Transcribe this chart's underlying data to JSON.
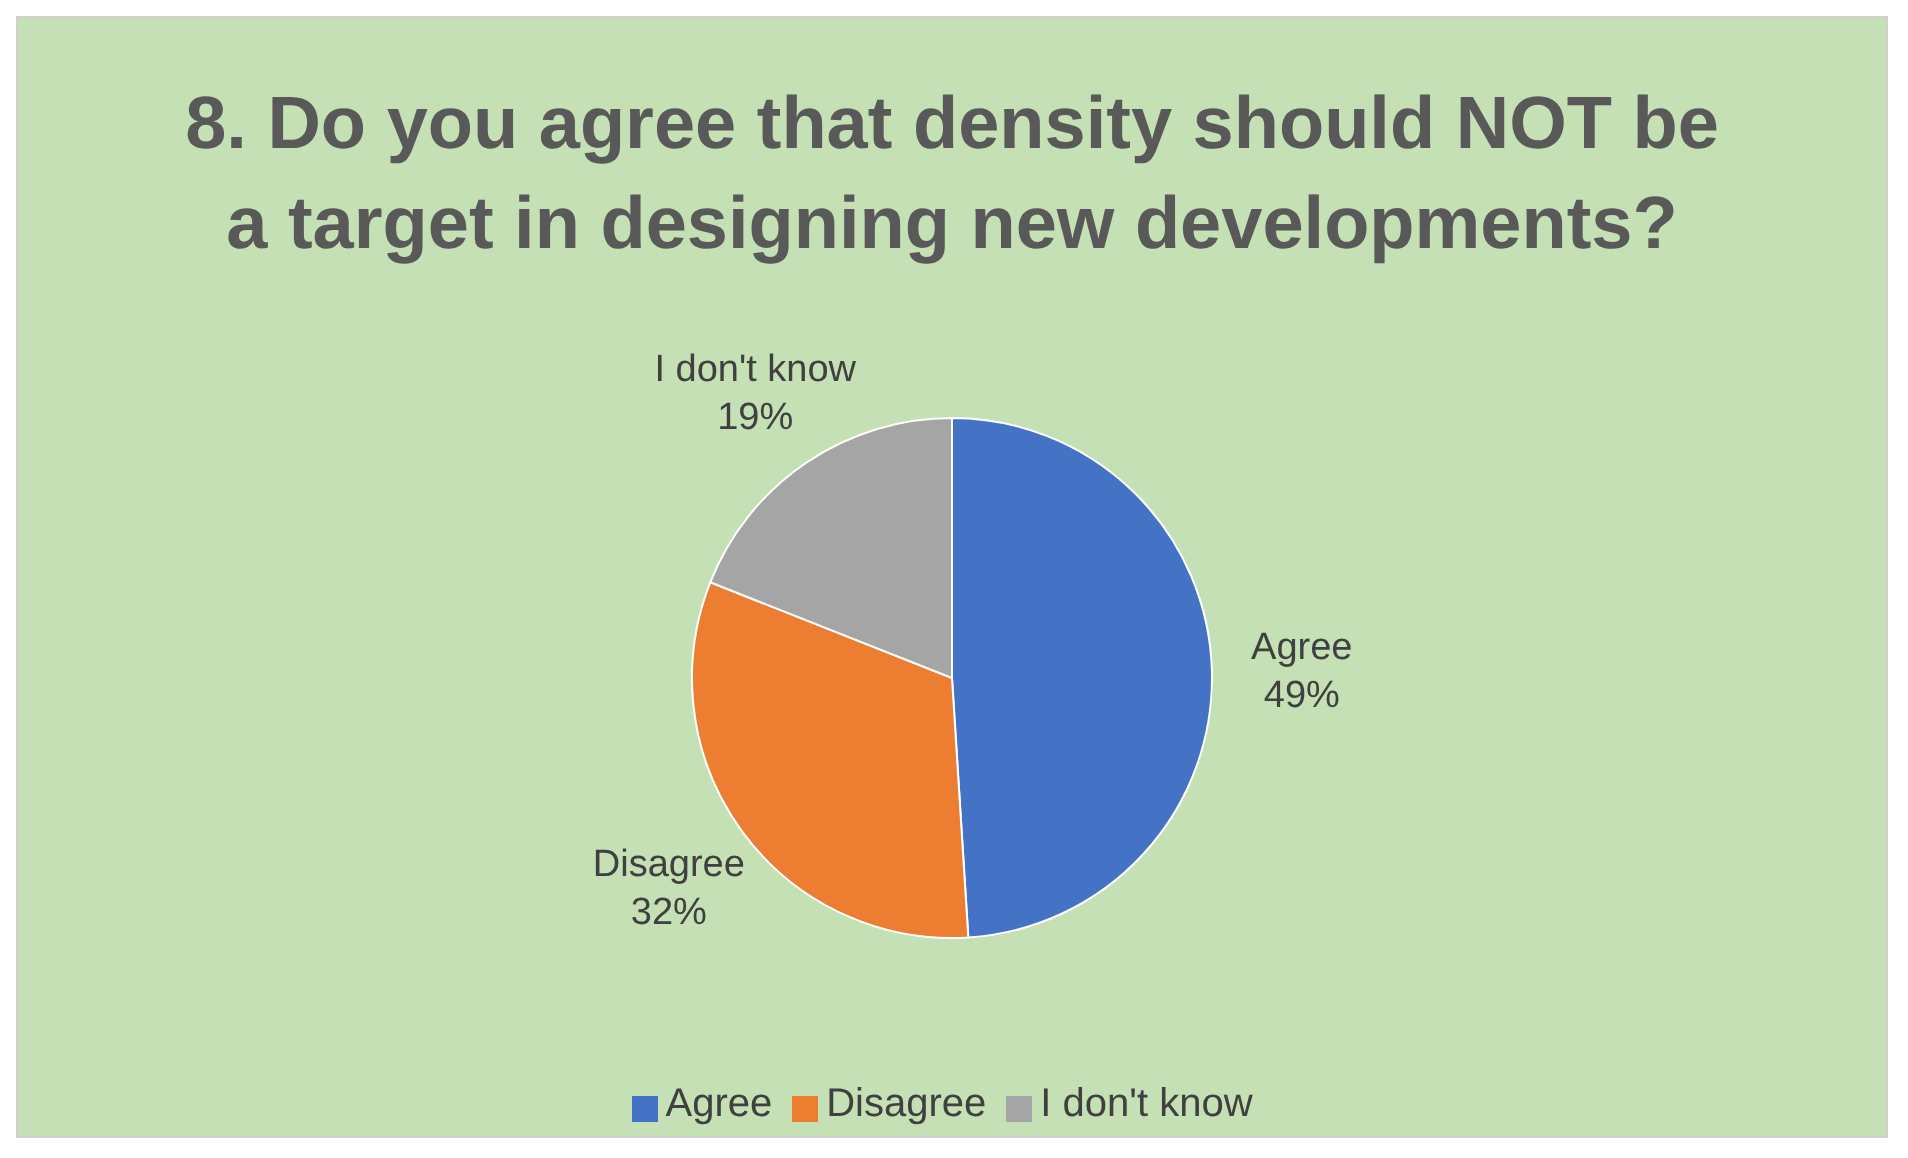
{
  "chart_data": {
    "type": "pie",
    "title": "8. Do you agree that density should NOT be a target in designing new developments?",
    "categories": [
      "Agree",
      "Disagree",
      "I don't know"
    ],
    "values": [
      49,
      32,
      19
    ],
    "colors": [
      "#4472c4",
      "#ed7d31",
      "#a5a5a5"
    ],
    "value_labels": [
      "49%",
      "32%",
      "19%"
    ],
    "legend": "bottom"
  }
}
